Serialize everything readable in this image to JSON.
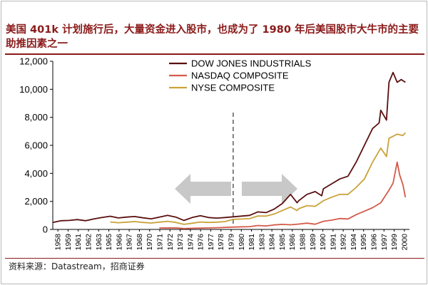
{
  "title": "美国 401k 计划施行后，大量资金进入股市，也成为了 1980 年后美国股市大牛市的主要助推因素之一",
  "source": "资料来源：Datastream，招商证券",
  "colors": {
    "title": "#8b1a1a",
    "dow": "#5a0f0f",
    "nasdaq": "#d45a4a",
    "nyse": "#c9a23a",
    "arrow": "#c8c8c8",
    "divider": "#666666"
  },
  "chart_data": {
    "type": "line",
    "ylim": [
      0,
      12000
    ],
    "yticks": [
      0,
      2000,
      4000,
      6000,
      8000,
      10000,
      12000
    ],
    "ytick_labels": [
      "0",
      "2,000",
      "4,000",
      "6,000",
      "8,000",
      "10,000",
      "12,000"
    ],
    "xlim": [
      1958,
      2001.5
    ],
    "xtick_labels": [
      "1958",
      "1959",
      "1961",
      "1962",
      "1963",
      "1965",
      "1966",
      "1967",
      "1968",
      "1970",
      "1971",
      "1972",
      "1973",
      "1974",
      "1976",
      "1977",
      "1978",
      "1979",
      "1980",
      "1981",
      "1983",
      "1984",
      "1985",
      "1986",
      "1988",
      "1989",
      "1990",
      "1991",
      "1992",
      "1994",
      "1995",
      "1996",
      "1997",
      "1999",
      "2000"
    ],
    "divider_x": 1980,
    "annotations": {
      "left_arrow": "decorative",
      "right_arrow": "decorative"
    },
    "legend_position": "top",
    "series": [
      {
        "name": "DOW JONES INDUSTRIALS",
        "x": [
          1958,
          1959,
          1960,
          1961,
          1962,
          1963,
          1964,
          1965,
          1966,
          1967,
          1968,
          1969,
          1970,
          1971,
          1972,
          1973,
          1974,
          1975,
          1976,
          1977,
          1978,
          1979,
          1980,
          1981,
          1982,
          1983,
          1984,
          1985,
          1986,
          1987,
          1987.8,
          1988,
          1989,
          1990,
          1990.8,
          1991,
          1992,
          1993,
          1994,
          1995,
          1996,
          1997,
          1997.8,
          1998,
          1998.7,
          1999,
          1999.5,
          2000,
          2000.5,
          2001
        ],
        "y": [
          500,
          620,
          640,
          700,
          620,
          750,
          850,
          940,
          820,
          880,
          920,
          830,
          760,
          880,
          1000,
          880,
          640,
          850,
          980,
          850,
          810,
          850,
          900,
          950,
          1000,
          1250,
          1200,
          1450,
          1850,
          2500,
          1900,
          2050,
          2500,
          2700,
          2400,
          2900,
          3250,
          3600,
          3800,
          4800,
          6000,
          7200,
          7600,
          8500,
          7800,
          10500,
          11200,
          10500,
          10700,
          10500
        ]
      },
      {
        "name": "NASDAQ COMPOSITE",
        "x": [
          1971,
          1973,
          1974,
          1975,
          1978,
          1980,
          1982,
          1983,
          1984,
          1985,
          1986,
          1987,
          1988,
          1989,
          1990,
          1991,
          1992,
          1993,
          1994,
          1995,
          1996,
          1997,
          1998,
          1999,
          1999.5,
          2000,
          2000.3,
          2000.7,
          2001
        ],
        "y": [
          100,
          110,
          60,
          80,
          120,
          170,
          200,
          280,
          250,
          320,
          360,
          330,
          380,
          450,
          370,
          580,
          660,
          780,
          750,
          1050,
          1300,
          1550,
          1900,
          2800,
          3300,
          4800,
          3900,
          3200,
          2300
        ]
      },
      {
        "name": "NYSE COMPOSITE",
        "x": [
          1965,
          1966,
          1967,
          1968,
          1969,
          1970,
          1971,
          1972,
          1973,
          1974,
          1975,
          1976,
          1977,
          1978,
          1979,
          1980,
          1981,
          1982,
          1983,
          1984,
          1985,
          1986,
          1987,
          1987.8,
          1988,
          1989,
          1990,
          1991,
          1992,
          1993,
          1994,
          1995,
          1996,
          1997,
          1998,
          1998.7,
          1999,
          2000,
          2000.7,
          2001
        ],
        "y": [
          530,
          480,
          520,
          560,
          500,
          460,
          520,
          580,
          500,
          360,
          440,
          530,
          500,
          520,
          560,
          720,
          740,
          770,
          960,
          950,
          1100,
          1350,
          1600,
          1350,
          1480,
          1700,
          1650,
          2050,
          2300,
          2500,
          2500,
          3000,
          3600,
          4800,
          5800,
          5200,
          6500,
          6800,
          6700,
          6900
        ]
      }
    ]
  }
}
